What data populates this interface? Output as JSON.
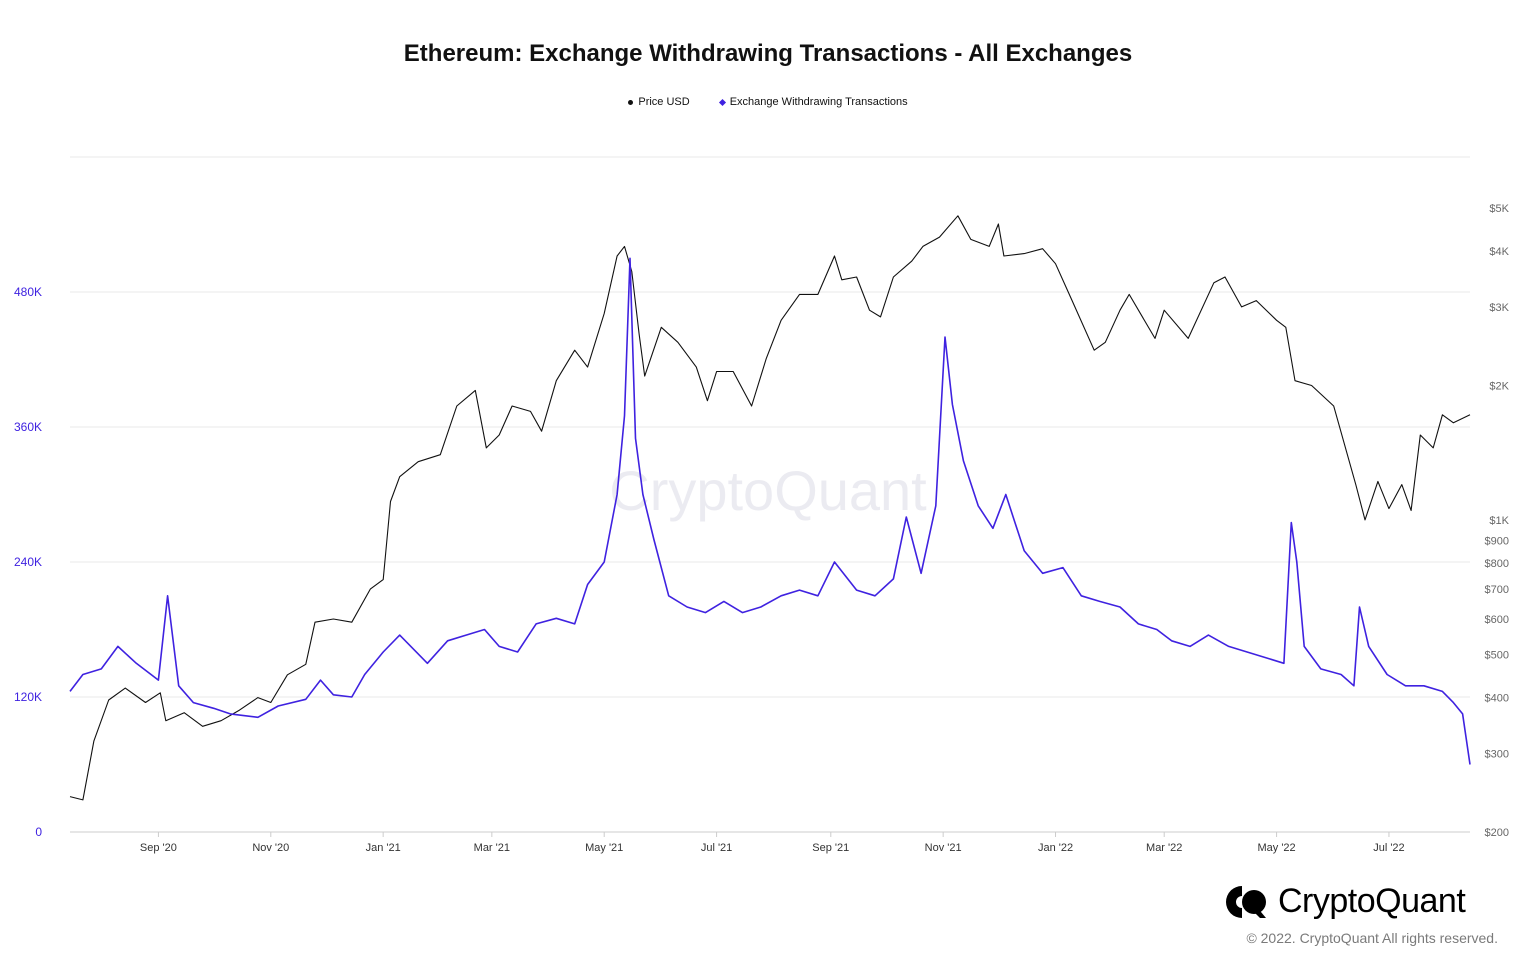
{
  "title": "Ethereum: Exchange Withdrawing Transactions - All Exchanges",
  "legend": {
    "price": "Price USD",
    "transactions": "Exchange Withdrawing Transactions"
  },
  "watermark": "CryptoQuant",
  "brand": {
    "name": "CryptoQuant",
    "icon": "cryptoquant-logo-icon"
  },
  "copyright": "© 2022. CryptoQuant All rights reserved.",
  "colors": {
    "price": "#111111",
    "transactions": "#3f22e0",
    "grid": "#e8e8e8",
    "left_axis": "#3f22e0",
    "right_axis": "#666666"
  },
  "chart_data": {
    "type": "line",
    "title": "Ethereum: Exchange Withdrawing Transactions - All Exchanges",
    "x_range": [
      "2020-07-15",
      "2022-08-14"
    ],
    "x_ticks": [
      {
        "label": "Sep '20",
        "date": "2020-09-01"
      },
      {
        "label": "Nov '20",
        "date": "2020-11-01"
      },
      {
        "label": "Jan '21",
        "date": "2021-01-01"
      },
      {
        "label": "Mar '21",
        "date": "2021-03-01"
      },
      {
        "label": "May '21",
        "date": "2021-05-01"
      },
      {
        "label": "Jul '21",
        "date": "2021-07-01"
      },
      {
        "label": "Sep '21",
        "date": "2021-09-01"
      },
      {
        "label": "Nov '21",
        "date": "2021-11-01"
      },
      {
        "label": "Jan '22",
        "date": "2022-01-01"
      },
      {
        "label": "Mar '22",
        "date": "2022-03-01"
      },
      {
        "label": "May '22",
        "date": "2022-05-01"
      },
      {
        "label": "Jul '22",
        "date": "2022-07-01"
      }
    ],
    "left_axis": {
      "series": "Exchange Withdrawing Transactions",
      "ylim": [
        0,
        600000
      ],
      "ticks": [
        {
          "label": "0",
          "value": 0
        },
        {
          "label": "120K",
          "value": 120000
        },
        {
          "label": "240K",
          "value": 240000
        },
        {
          "label": "360K",
          "value": 360000
        },
        {
          "label": "480K",
          "value": 480000
        }
      ]
    },
    "right_axis": {
      "series": "Price USD",
      "scale": "log",
      "ylim": [
        200,
        6500
      ],
      "ticks": [
        {
          "label": "$200",
          "value": 200
        },
        {
          "label": "$300",
          "value": 300
        },
        {
          "label": "$400",
          "value": 400
        },
        {
          "label": "$500",
          "value": 500
        },
        {
          "label": "$600",
          "value": 600
        },
        {
          "label": "$700",
          "value": 700
        },
        {
          "label": "$800",
          "value": 800
        },
        {
          "label": "$900",
          "value": 900
        },
        {
          "label": "$1K",
          "value": 1000
        },
        {
          "label": "$2K",
          "value": 2000
        },
        {
          "label": "$3K",
          "value": 3000
        },
        {
          "label": "$4K",
          "value": 4000
        },
        {
          "label": "$5K",
          "value": 5000
        }
      ]
    },
    "series": [
      {
        "name": "Price USD",
        "axis": "right",
        "color": "#111111",
        "points": [
          [
            "2020-07-15",
            240
          ],
          [
            "2020-07-22",
            236
          ],
          [
            "2020-07-28",
            320
          ],
          [
            "2020-08-05",
            395
          ],
          [
            "2020-08-14",
            420
          ],
          [
            "2020-08-25",
            390
          ],
          [
            "2020-09-02",
            410
          ],
          [
            "2020-09-05",
            355
          ],
          [
            "2020-09-15",
            370
          ],
          [
            "2020-09-25",
            345
          ],
          [
            "2020-10-05",
            355
          ],
          [
            "2020-10-15",
            375
          ],
          [
            "2020-10-25",
            400
          ],
          [
            "2020-11-01",
            390
          ],
          [
            "2020-11-10",
            450
          ],
          [
            "2020-11-20",
            475
          ],
          [
            "2020-11-25",
            590
          ],
          [
            "2020-12-05",
            600
          ],
          [
            "2020-12-15",
            590
          ],
          [
            "2020-12-25",
            700
          ],
          [
            "2021-01-01",
            735
          ],
          [
            "2021-01-05",
            1100
          ],
          [
            "2021-01-10",
            1250
          ],
          [
            "2021-01-20",
            1350
          ],
          [
            "2021-02-01",
            1400
          ],
          [
            "2021-02-10",
            1800
          ],
          [
            "2021-02-20",
            1950
          ],
          [
            "2021-02-26",
            1450
          ],
          [
            "2021-03-05",
            1550
          ],
          [
            "2021-03-12",
            1800
          ],
          [
            "2021-03-22",
            1750
          ],
          [
            "2021-03-28",
            1580
          ],
          [
            "2021-04-05",
            2050
          ],
          [
            "2021-04-15",
            2400
          ],
          [
            "2021-04-22",
            2200
          ],
          [
            "2021-05-01",
            2900
          ],
          [
            "2021-05-08",
            3900
          ],
          [
            "2021-05-12",
            4100
          ],
          [
            "2021-05-16",
            3600
          ],
          [
            "2021-05-20",
            2600
          ],
          [
            "2021-05-23",
            2100
          ],
          [
            "2021-06-01",
            2700
          ],
          [
            "2021-06-10",
            2500
          ],
          [
            "2021-06-20",
            2200
          ],
          [
            "2021-06-26",
            1850
          ],
          [
            "2021-07-01",
            2150
          ],
          [
            "2021-07-10",
            2150
          ],
          [
            "2021-07-20",
            1800
          ],
          [
            "2021-07-28",
            2300
          ],
          [
            "2021-08-05",
            2800
          ],
          [
            "2021-08-15",
            3200
          ],
          [
            "2021-08-25",
            3200
          ],
          [
            "2021-09-03",
            3900
          ],
          [
            "2021-09-07",
            3450
          ],
          [
            "2021-09-15",
            3500
          ],
          [
            "2021-09-22",
            2950
          ],
          [
            "2021-09-28",
            2850
          ],
          [
            "2021-10-05",
            3500
          ],
          [
            "2021-10-15",
            3800
          ],
          [
            "2021-10-21",
            4100
          ],
          [
            "2021-10-30",
            4300
          ],
          [
            "2021-11-09",
            4800
          ],
          [
            "2021-11-16",
            4250
          ],
          [
            "2021-11-26",
            4100
          ],
          [
            "2021-12-01",
            4600
          ],
          [
            "2021-12-04",
            3900
          ],
          [
            "2021-12-15",
            3950
          ],
          [
            "2021-12-25",
            4050
          ],
          [
            "2022-01-01",
            3750
          ],
          [
            "2022-01-10",
            3100
          ],
          [
            "2022-01-22",
            2400
          ],
          [
            "2022-01-28",
            2500
          ],
          [
            "2022-02-05",
            2950
          ],
          [
            "2022-02-10",
            3200
          ],
          [
            "2022-02-24",
            2550
          ],
          [
            "2022-03-01",
            2950
          ],
          [
            "2022-03-14",
            2550
          ],
          [
            "2022-03-28",
            3400
          ],
          [
            "2022-04-03",
            3500
          ],
          [
            "2022-04-12",
            3000
          ],
          [
            "2022-04-20",
            3100
          ],
          [
            "2022-05-01",
            2800
          ],
          [
            "2022-05-06",
            2700
          ],
          [
            "2022-05-11",
            2050
          ],
          [
            "2022-05-20",
            2000
          ],
          [
            "2022-06-01",
            1800
          ],
          [
            "2022-06-13",
            1200
          ],
          [
            "2022-06-18",
            1000
          ],
          [
            "2022-06-25",
            1220
          ],
          [
            "2022-07-01",
            1060
          ],
          [
            "2022-07-08",
            1200
          ],
          [
            "2022-07-13",
            1050
          ],
          [
            "2022-07-18",
            1550
          ],
          [
            "2022-07-25",
            1450
          ],
          [
            "2022-07-30",
            1720
          ],
          [
            "2022-08-05",
            1650
          ],
          [
            "2022-08-14",
            1720
          ]
        ]
      },
      {
        "name": "Exchange Withdrawing Transactions",
        "axis": "left",
        "color": "#3f22e0",
        "points": [
          [
            "2020-07-15",
            125000
          ],
          [
            "2020-07-22",
            140000
          ],
          [
            "2020-08-01",
            145000
          ],
          [
            "2020-08-10",
            165000
          ],
          [
            "2020-08-20",
            150000
          ],
          [
            "2020-09-01",
            135000
          ],
          [
            "2020-09-06",
            210000
          ],
          [
            "2020-09-12",
            130000
          ],
          [
            "2020-09-20",
            115000
          ],
          [
            "2020-10-01",
            110000
          ],
          [
            "2020-10-10",
            105000
          ],
          [
            "2020-10-25",
            102000
          ],
          [
            "2020-11-05",
            112000
          ],
          [
            "2020-11-20",
            118000
          ],
          [
            "2020-11-28",
            135000
          ],
          [
            "2020-12-05",
            122000
          ],
          [
            "2020-12-15",
            120000
          ],
          [
            "2020-12-22",
            140000
          ],
          [
            "2021-01-01",
            160000
          ],
          [
            "2021-01-10",
            175000
          ],
          [
            "2021-01-25",
            150000
          ],
          [
            "2021-02-05",
            170000
          ],
          [
            "2021-02-15",
            175000
          ],
          [
            "2021-02-25",
            180000
          ],
          [
            "2021-03-05",
            165000
          ],
          [
            "2021-03-15",
            160000
          ],
          [
            "2021-03-25",
            185000
          ],
          [
            "2021-04-05",
            190000
          ],
          [
            "2021-04-15",
            185000
          ],
          [
            "2021-04-22",
            220000
          ],
          [
            "2021-05-01",
            240000
          ],
          [
            "2021-05-08",
            300000
          ],
          [
            "2021-05-12",
            370000
          ],
          [
            "2021-05-15",
            510000
          ],
          [
            "2021-05-18",
            350000
          ],
          [
            "2021-05-22",
            300000
          ],
          [
            "2021-05-28",
            260000
          ],
          [
            "2021-06-05",
            210000
          ],
          [
            "2021-06-15",
            200000
          ],
          [
            "2021-06-25",
            195000
          ],
          [
            "2021-07-05",
            205000
          ],
          [
            "2021-07-15",
            195000
          ],
          [
            "2021-07-25",
            200000
          ],
          [
            "2021-08-05",
            210000
          ],
          [
            "2021-08-15",
            215000
          ],
          [
            "2021-08-25",
            210000
          ],
          [
            "2021-09-03",
            240000
          ],
          [
            "2021-09-15",
            215000
          ],
          [
            "2021-09-25",
            210000
          ],
          [
            "2021-10-05",
            225000
          ],
          [
            "2021-10-12",
            280000
          ],
          [
            "2021-10-20",
            230000
          ],
          [
            "2021-10-28",
            290000
          ],
          [
            "2021-11-02",
            440000
          ],
          [
            "2021-11-06",
            380000
          ],
          [
            "2021-11-12",
            330000
          ],
          [
            "2021-11-20",
            290000
          ],
          [
            "2021-11-28",
            270000
          ],
          [
            "2021-12-05",
            300000
          ],
          [
            "2021-12-15",
            250000
          ],
          [
            "2021-12-25",
            230000
          ],
          [
            "2022-01-05",
            235000
          ],
          [
            "2022-01-15",
            210000
          ],
          [
            "2022-01-25",
            205000
          ],
          [
            "2022-02-05",
            200000
          ],
          [
            "2022-02-15",
            185000
          ],
          [
            "2022-02-25",
            180000
          ],
          [
            "2022-03-05",
            170000
          ],
          [
            "2022-03-15",
            165000
          ],
          [
            "2022-03-25",
            175000
          ],
          [
            "2022-04-05",
            165000
          ],
          [
            "2022-04-15",
            160000
          ],
          [
            "2022-04-25",
            155000
          ],
          [
            "2022-05-05",
            150000
          ],
          [
            "2022-05-09",
            275000
          ],
          [
            "2022-05-12",
            240000
          ],
          [
            "2022-05-16",
            165000
          ],
          [
            "2022-05-25",
            145000
          ],
          [
            "2022-06-05",
            140000
          ],
          [
            "2022-06-12",
            130000
          ],
          [
            "2022-06-15",
            200000
          ],
          [
            "2022-06-20",
            165000
          ],
          [
            "2022-06-30",
            140000
          ],
          [
            "2022-07-10",
            130000
          ],
          [
            "2022-07-20",
            130000
          ],
          [
            "2022-07-30",
            125000
          ],
          [
            "2022-08-05",
            115000
          ],
          [
            "2022-08-10",
            105000
          ],
          [
            "2022-08-14",
            60000
          ]
        ]
      }
    ]
  }
}
